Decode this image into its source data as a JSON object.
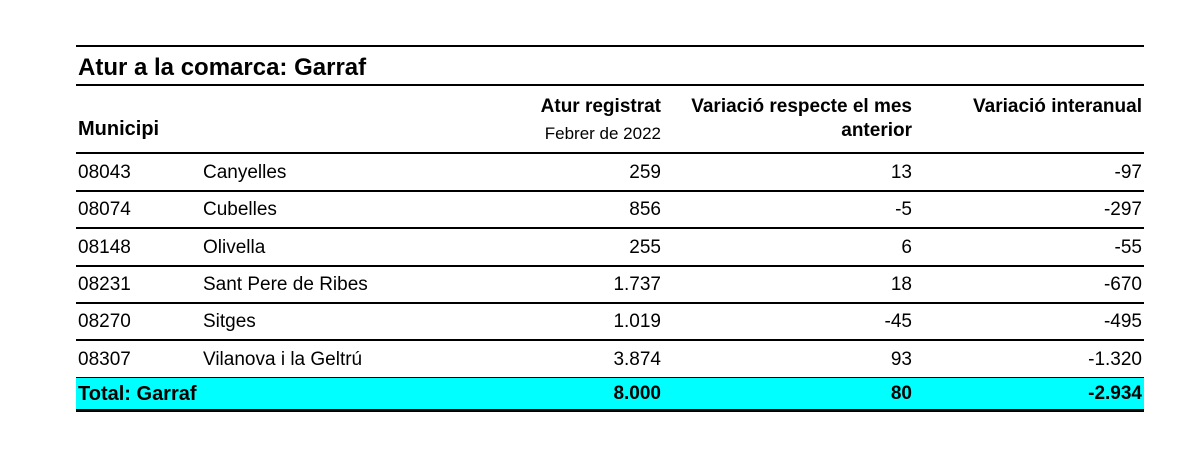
{
  "table": {
    "title": "Atur a la comarca: Garraf",
    "header": {
      "municipi": "Municipi",
      "atur": "Atur registrat",
      "atur_sub": "Febrer de 2022",
      "variacio_mes_1": "Variació respecte el mes",
      "variacio_mes_2": "anterior",
      "variacio_interanual": "Variació interanual"
    },
    "rows": [
      [
        "08043",
        "Canyelles",
        "259",
        "13",
        "-97"
      ],
      [
        "08074",
        "Cubelles",
        "856",
        "-5",
        "-297"
      ],
      [
        "08148",
        "Olivella",
        "255",
        "6",
        "-55"
      ],
      [
        "08231",
        "Sant Pere de Ribes",
        "1.737",
        "18",
        "-670"
      ],
      [
        "08270",
        "Sitges",
        "1.019",
        "-45",
        "-495"
      ],
      [
        "08307",
        "Vilanova i la Geltrú",
        "3.874",
        "93",
        "-1.320"
      ]
    ],
    "total": [
      "Total: Garraf",
      "8.000",
      "80",
      "-2.934"
    ]
  }
}
